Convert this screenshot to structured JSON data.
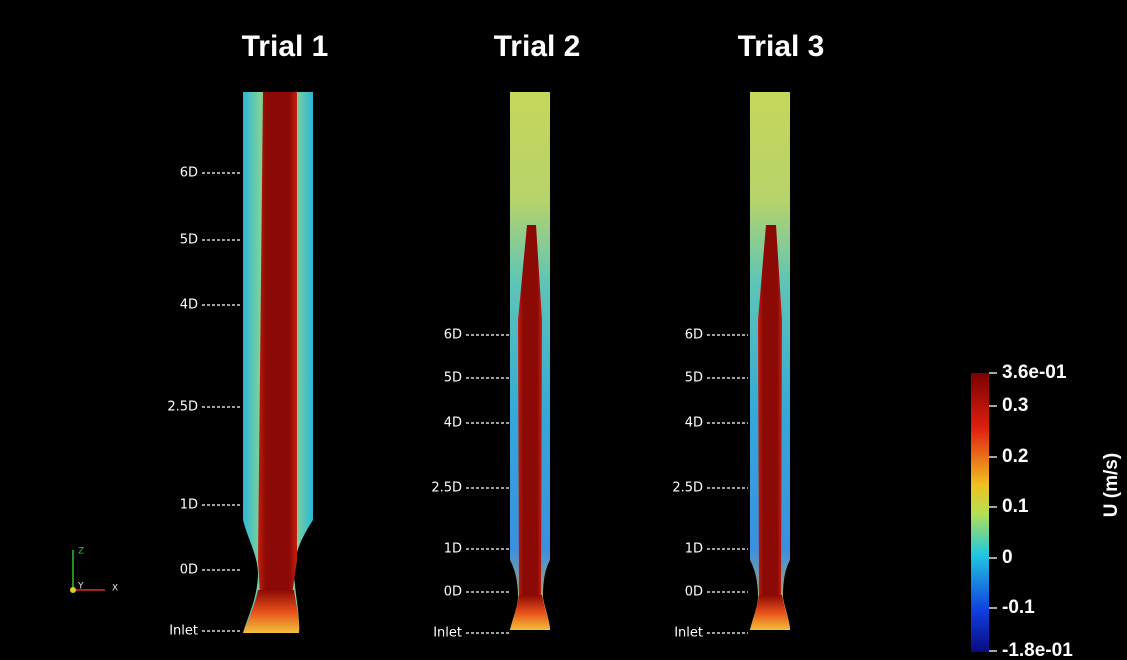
{
  "panels": [
    {
      "title": "Trial 1",
      "stations": [
        "6D",
        "5D",
        "4D",
        "2.5D",
        "1D",
        "0D",
        "Inlet"
      ]
    },
    {
      "title": "Trial 2",
      "stations": [
        "6D",
        "5D",
        "4D",
        "2.5D",
        "1D",
        "0D",
        "Inlet"
      ]
    },
    {
      "title": "Trial 3",
      "stations": [
        "6D",
        "5D",
        "4D",
        "2.5D",
        "1D",
        "0D",
        "Inlet"
      ]
    }
  ],
  "colorbar": {
    "title": "U (m/s)",
    "labels": [
      "3.6e-01",
      "0.3",
      "0.2",
      "0.1",
      "0",
      "-0.1",
      "-1.8e-01"
    ]
  },
  "axes_triad": {
    "labels": [
      "Z",
      "Y",
      "X"
    ]
  }
}
